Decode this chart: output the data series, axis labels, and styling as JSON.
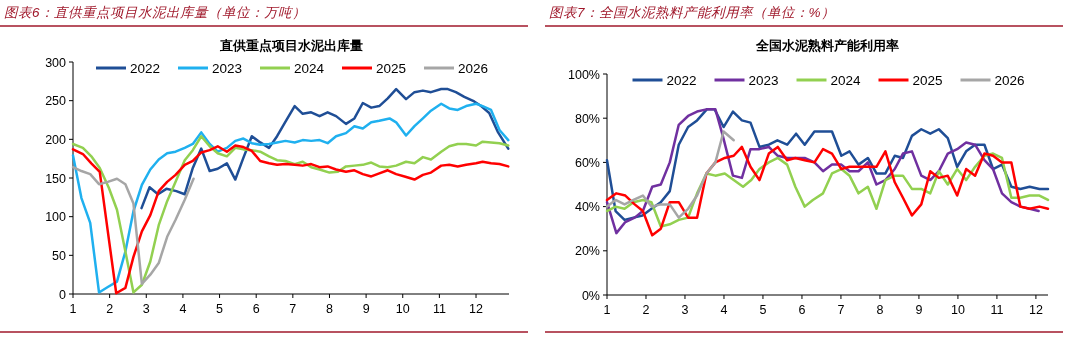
{
  "chart_data": [
    {
      "type": "line",
      "title": "图表6：直供重点项目水泥出库量（单位：万吨）",
      "subtitle": "直供重点项目水泥出库量",
      "xlim": [
        1,
        12.9
      ],
      "xticks": [
        1,
        2,
        3,
        4,
        5,
        6,
        7,
        8,
        9,
        10,
        11,
        12
      ],
      "ylim": [
        0,
        300
      ],
      "yticks": [
        0,
        50,
        100,
        150,
        200,
        250,
        300
      ],
      "legend": "top",
      "grid": false,
      "series": [
        {
          "name": "2022",
          "color": "#1f4e96",
          "x": [
            2.87,
            3.09,
            3.32,
            3.55,
            3.82,
            4.05,
            4.27,
            4.5,
            4.73,
            4.95,
            5.2,
            5.43,
            5.65,
            5.88,
            6.11,
            6.35,
            6.57,
            6.8,
            7.05,
            7.27,
            7.5,
            7.73,
            7.95,
            8.18,
            8.45,
            8.68,
            8.91,
            9.14,
            9.36,
            9.59,
            9.82,
            10.09,
            10.32,
            10.55,
            10.77,
            11.05,
            11.23,
            11.45,
            11.68,
            11.95,
            12.14,
            12.36,
            12.59,
            12.88
          ],
          "values": [
            111,
            138,
            129,
            136,
            133,
            129,
            163,
            188,
            159,
            162,
            169,
            148,
            176,
            204,
            196,
            189,
            204,
            223,
            243,
            233,
            235,
            230,
            235,
            230,
            220,
            227,
            247,
            241,
            243,
            253,
            265,
            252,
            261,
            263,
            261,
            265,
            265,
            261,
            255,
            249,
            243,
            234,
            210,
            188
          ]
        },
        {
          "name": "2023",
          "color": "#1fb0ef",
          "x": [
            1,
            1.23,
            1.47,
            1.71,
            1.95,
            2.2,
            2.43,
            2.65,
            2.88,
            3.11,
            3.34,
            3.57,
            3.8,
            4.05,
            4.27,
            4.5,
            4.73,
            4.95,
            5.2,
            5.43,
            5.65,
            5.88,
            6.11,
            6.35,
            6.57,
            6.8,
            7.05,
            7.27,
            7.5,
            7.73,
            7.95,
            8.18,
            8.45,
            8.68,
            8.91,
            9.14,
            9.36,
            9.64,
            9.82,
            10.09,
            10.32,
            10.55,
            10.77,
            11.05,
            11.27,
            11.5,
            11.73,
            12,
            12.18,
            12.41,
            12.64,
            12.88
          ],
          "values": [
            179,
            124,
            92,
            2,
            9,
            16,
            55,
            107,
            141,
            161,
            174,
            182,
            184,
            189,
            194,
            209,
            194,
            184,
            189,
            198,
            201,
            195,
            193,
            194,
            196,
            198,
            196,
            199,
            198,
            199,
            195,
            204,
            208,
            217,
            214,
            222,
            224,
            227,
            222,
            205,
            217,
            227,
            237,
            246,
            240,
            238,
            243,
            246,
            243,
            238,
            212,
            199
          ]
        },
        {
          "name": "2024",
          "color": "#92d050",
          "x": [
            1,
            1.27,
            1.5,
            1.73,
            1.98,
            2.2,
            2.43,
            2.65,
            2.88,
            3.11,
            3.34,
            3.57,
            3.8,
            4.05,
            4.27,
            4.5,
            4.73,
            4.95,
            5.2,
            5.43,
            5.65,
            5.88,
            6.11,
            6.35,
            6.57,
            6.8,
            7.05,
            7.27,
            7.5,
            7.73,
            8,
            8.23,
            8.45,
            8.68,
            8.91,
            9.14,
            9.36,
            9.59,
            9.82,
            10.09,
            10.32,
            10.55,
            10.77,
            11.05,
            11.27,
            11.5,
            11.73,
            12,
            12.18,
            12.41,
            12.64,
            12.88
          ],
          "values": [
            194,
            189,
            178,
            163,
            137,
            109,
            55,
            2,
            12,
            42,
            89,
            120,
            145,
            173,
            186,
            204,
            191,
            182,
            178,
            189,
            187,
            186,
            184,
            178,
            173,
            172,
            168,
            171,
            164,
            161,
            157,
            158,
            165,
            166,
            167,
            170,
            165,
            164,
            166,
            171,
            169,
            177,
            174,
            184,
            191,
            194,
            194,
            192,
            197,
            196,
            195,
            192
          ]
        },
        {
          "name": "2025",
          "color": "#ff0000",
          "x": [
            1,
            1.27,
            1.5,
            1.73,
            1.95,
            2.18,
            2.43,
            2.65,
            2.88,
            3.11,
            3.34,
            3.57,
            3.8,
            4.05,
            4.27,
            4.5,
            4.73,
            4.95,
            5.2,
            5.43,
            5.65,
            5.88,
            6.11,
            6.35,
            6.57,
            6.8,
            7.05,
            7.27,
            7.5,
            7.73,
            7.95,
            8.18,
            8.45,
            8.68,
            8.91,
            9.14,
            9.36,
            9.59,
            9.82,
            10.05,
            10.32,
            10.55,
            10.77,
            11.05,
            11.27,
            11.5,
            11.73,
            12,
            12.18,
            12.41,
            12.64,
            12.88
          ],
          "values": [
            187,
            181,
            169,
            158,
            81,
            1,
            8,
            48,
            81,
            102,
            133,
            145,
            154,
            167,
            172,
            183,
            186,
            191,
            184,
            192,
            190,
            185,
            172,
            169,
            167,
            168,
            167,
            166,
            168,
            164,
            165,
            161,
            158,
            160,
            155,
            152,
            156,
            160,
            155,
            152,
            148,
            154,
            157,
            166,
            167,
            165,
            167,
            169,
            171,
            169,
            168,
            165
          ]
        },
        {
          "name": "2026",
          "color": "#a6a6a6",
          "x": [
            1,
            1.23,
            1.47,
            1.71,
            1.95,
            2.2,
            2.43,
            2.65,
            2.88,
            3.11,
            3.34,
            3.57,
            3.8,
            4.05,
            4.29
          ],
          "values": [
            164,
            159,
            155,
            142,
            145,
            149,
            142,
            117,
            13,
            25,
            40,
            74,
            96,
            122,
            149
          ]
        }
      ]
    },
    {
      "type": "line",
      "title": "图表7：全国水泥熟料产能利用率（单位：%）",
      "subtitle": "全国水泥熟料产能利用率",
      "xlim": [
        1,
        12.31
      ],
      "xticks": [
        1,
        2,
        3,
        4,
        5,
        6,
        7,
        8,
        9,
        10,
        11,
        12
      ],
      "ylim": [
        0,
        100
      ],
      "yticks": [
        {
          "value": 0,
          "label": "0%"
        },
        {
          "value": 20,
          "label": "20%"
        },
        {
          "value": 40,
          "label": "40%"
        },
        {
          "value": 60,
          "label": "60%"
        },
        {
          "value": 80,
          "label": "80%"
        },
        {
          "value": 100,
          "label": "100%"
        }
      ],
      "legend": "top",
      "grid": false,
      "series": [
        {
          "name": "2022",
          "color": "#1f4e96",
          "x": [
            1,
            1.22,
            1.45,
            1.68,
            1.91,
            2.14,
            2.38,
            2.61,
            2.84,
            3.08,
            3.31,
            3.56,
            3.76,
            3.99,
            4.23,
            4.46,
            4.68,
            4.91,
            5.15,
            5.37,
            5.62,
            5.85,
            6.07,
            6.32,
            6.54,
            6.77,
            7.01,
            7.22,
            7.45,
            7.69,
            7.91,
            8.14,
            8.38,
            8.59,
            8.82,
            9.06,
            9.29,
            9.51,
            9.74,
            9.98,
            10.21,
            10.44,
            10.68,
            10.9,
            11.13,
            11.37,
            11.6,
            11.84,
            12.09,
            12.31
          ],
          "values": [
            61,
            38,
            34,
            35,
            36,
            39,
            42,
            47,
            68,
            76,
            79,
            84,
            84,
            76,
            83,
            79,
            78,
            67,
            68,
            70,
            68,
            73,
            68,
            74,
            74,
            74,
            63,
            65,
            59,
            62,
            55,
            55,
            63,
            62,
            72,
            75,
            73,
            75,
            71,
            58,
            65,
            68,
            68,
            57,
            59,
            49,
            48,
            49,
            48,
            48
          ]
        },
        {
          "name": "2023",
          "color": "#7030a0",
          "x": [
            1,
            1.24,
            1.47,
            1.71,
            1.92,
            2.16,
            2.38,
            2.61,
            2.84,
            3.08,
            3.31,
            3.55,
            3.78,
            3.97,
            4.23,
            4.46,
            4.68,
            4.91,
            5.15,
            5.38,
            5.62,
            5.85,
            6.07,
            6.32,
            6.54,
            6.77,
            7.01,
            7.22,
            7.45,
            7.69,
            7.91,
            8.14,
            8.38,
            8.59,
            8.82,
            9.06,
            9.29,
            9.51,
            9.74,
            9.98,
            10.21,
            10.44,
            10.68,
            10.9,
            11.13,
            11.37,
            11.6,
            11.84,
            12.07
          ],
          "values": [
            42,
            28,
            33,
            35,
            38,
            49,
            50,
            60,
            77,
            81,
            83,
            84,
            84,
            72,
            54,
            53,
            66,
            66,
            67,
            63,
            62,
            62,
            62,
            60,
            56,
            59,
            59,
            56,
            56,
            60,
            50,
            52,
            57,
            64,
            65,
            54,
            52,
            56,
            64,
            66,
            69,
            68,
            61,
            57,
            46,
            42,
            40,
            39,
            38
          ]
        },
        {
          "name": "2024",
          "color": "#92d050",
          "x": [
            1,
            1.22,
            1.45,
            1.68,
            1.92,
            2.14,
            2.38,
            2.61,
            2.84,
            3.08,
            3.31,
            3.55,
            3.78,
            4.02,
            4.25,
            4.49,
            4.7,
            4.91,
            5.15,
            5.38,
            5.62,
            5.83,
            6.07,
            6.28,
            6.54,
            6.77,
            7.01,
            7.22,
            7.45,
            7.69,
            7.91,
            8.14,
            8.38,
            8.59,
            8.82,
            9.06,
            9.29,
            9.51,
            9.74,
            9.98,
            10.21,
            10.44,
            10.68,
            10.9,
            11.13,
            11.37,
            11.6,
            11.84,
            12.09,
            12.31
          ],
          "values": [
            38,
            40,
            39,
            42,
            43,
            42,
            31,
            32,
            34,
            35,
            46,
            55,
            54,
            55,
            52,
            49,
            52,
            57,
            60,
            62,
            59,
            49,
            40,
            43,
            46,
            55,
            57,
            54,
            46,
            49,
            39,
            52,
            54,
            54,
            48,
            48,
            46,
            56,
            50,
            57,
            52,
            58,
            63,
            64,
            62,
            44,
            44,
            45,
            45,
            43
          ]
        },
        {
          "name": "2025",
          "color": "#ff0000",
          "x": [
            1,
            1.24,
            1.47,
            1.71,
            1.92,
            2.16,
            2.38,
            2.61,
            2.84,
            3.08,
            3.31,
            3.55,
            3.78,
            4.02,
            4.25,
            4.46,
            4.68,
            4.91,
            5.15,
            5.38,
            5.62,
            5.83,
            6.07,
            6.32,
            6.54,
            6.77,
            7.01,
            7.22,
            7.45,
            7.69,
            7.91,
            8.14,
            8.38,
            8.59,
            8.82,
            9.06,
            9.29,
            9.51,
            9.74,
            9.98,
            10.21,
            10.44,
            10.68,
            10.9,
            11.13,
            11.37,
            11.6,
            11.84,
            12.09,
            12.31
          ],
          "values": [
            43,
            46,
            45,
            41,
            38,
            27,
            30,
            42,
            42,
            35,
            35,
            55,
            60,
            62,
            63,
            67,
            58,
            52,
            64,
            67,
            61,
            62,
            61,
            60,
            66,
            64,
            57,
            58,
            58,
            58,
            58,
            65,
            51,
            44,
            36,
            41,
            56,
            53,
            54,
            45,
            57,
            54,
            64,
            63,
            60,
            60,
            40,
            39,
            40,
            39
          ]
        },
        {
          "name": "2026",
          "color": "#a6a6a6",
          "x": [
            1,
            1.22,
            1.45,
            1.68,
            1.92,
            2.14,
            2.38,
            2.61,
            2.84,
            3.08,
            3.31,
            3.55,
            3.78,
            3.99,
            4.25
          ],
          "values": [
            40,
            43,
            41,
            43,
            45,
            40,
            41,
            41,
            35,
            39,
            45,
            55,
            60,
            74,
            70
          ]
        }
      ]
    }
  ]
}
